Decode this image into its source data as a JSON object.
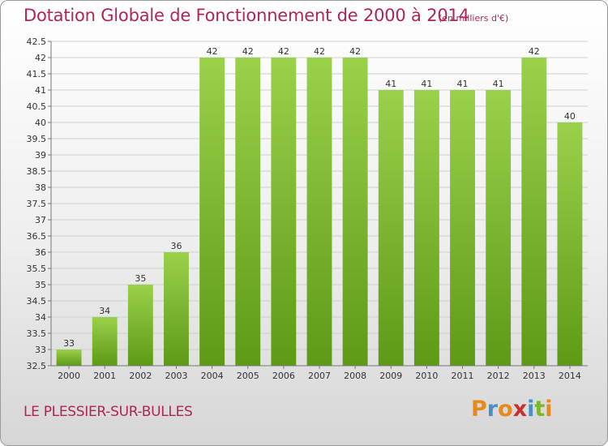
{
  "title": "Dotation Globale de Fonctionnement de 2000 à 2014",
  "subtitle": "(en milliers d'€)",
  "commune": "LE PLESSIER-SUR-BULLES",
  "logo": {
    "text": "Proxiti",
    "letters": [
      {
        "ch": "P",
        "color": "#e8891c"
      },
      {
        "ch": "r",
        "color": "#4a90c8"
      },
      {
        "ch": "o",
        "color": "#e8891c"
      },
      {
        "ch": "x",
        "color": "#c9302c"
      },
      {
        "ch": "i",
        "color": "#4a90c8"
      },
      {
        "ch": "t",
        "color": "#7ab829"
      },
      {
        "ch": "i",
        "color": "#e8891c"
      }
    ]
  },
  "colors": {
    "title": "#b0245a",
    "bar_top": "#9ad14b",
    "bar_bottom": "#5e9a16",
    "grid": "#cfcfcf",
    "axis_text": "#333333"
  },
  "chart_data": {
    "type": "bar",
    "categories": [
      "2000",
      "2001",
      "2002",
      "2003",
      "2004",
      "2005",
      "2006",
      "2007",
      "2008",
      "2009",
      "2010",
      "2011",
      "2012",
      "2013",
      "2014"
    ],
    "values": [
      33,
      34,
      35,
      36,
      42,
      42,
      42,
      42,
      42,
      41,
      41,
      41,
      41,
      42,
      40
    ],
    "data_labels": [
      "33",
      "34",
      "35",
      "36",
      "42",
      "42",
      "42",
      "42",
      "42",
      "41",
      "41",
      "41",
      "41",
      "42",
      "40"
    ],
    "ylim": [
      32.5,
      42.5
    ],
    "yticks": [
      "32.5",
      "33",
      "33.5",
      "34",
      "34.5",
      "35",
      "35.5",
      "36",
      "36.5",
      "37",
      "37.5",
      "38",
      "38.5",
      "39",
      "39.5",
      "40",
      "40.5",
      "41",
      "41.5",
      "42",
      "42.5"
    ],
    "grid": true,
    "xlabel": "",
    "ylabel": ""
  }
}
